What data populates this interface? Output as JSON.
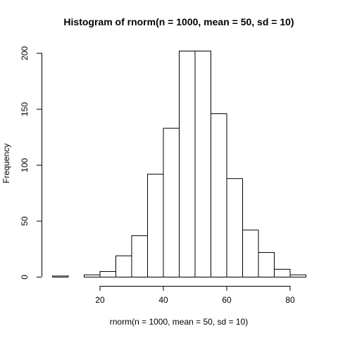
{
  "chart_data": {
    "type": "bar",
    "title": "Histogram of rnorm(n = 1000, mean = 50, sd = 10)",
    "xlabel": "rnorm(n = 1000, mean = 50, sd = 10)",
    "ylabel": "Frequency",
    "bins": [
      {
        "start": 5,
        "end": 10,
        "count": 1
      },
      {
        "start": 10,
        "end": 15,
        "count": 0
      },
      {
        "start": 15,
        "end": 20,
        "count": 2
      },
      {
        "start": 20,
        "end": 25,
        "count": 5
      },
      {
        "start": 25,
        "end": 30,
        "count": 19
      },
      {
        "start": 30,
        "end": 35,
        "count": 37
      },
      {
        "start": 35,
        "end": 40,
        "count": 92
      },
      {
        "start": 40,
        "end": 45,
        "count": 133
      },
      {
        "start": 45,
        "end": 50,
        "count": 202
      },
      {
        "start": 50,
        "end": 55,
        "count": 202
      },
      {
        "start": 55,
        "end": 60,
        "count": 146
      },
      {
        "start": 60,
        "end": 65,
        "count": 88
      },
      {
        "start": 65,
        "end": 70,
        "count": 42
      },
      {
        "start": 70,
        "end": 75,
        "count": 22
      },
      {
        "start": 75,
        "end": 80,
        "count": 7
      },
      {
        "start": 80,
        "end": 85,
        "count": 2
      }
    ],
    "xlim": [
      5,
      85
    ],
    "ylim": [
      0,
      202
    ],
    "x_ticks": [
      20,
      40,
      60,
      80
    ],
    "y_ticks": [
      0,
      50,
      100,
      150,
      200
    ],
    "grid": false,
    "colors": {
      "bar_fill": "#ffffff",
      "bar_stroke": "#000000"
    }
  }
}
